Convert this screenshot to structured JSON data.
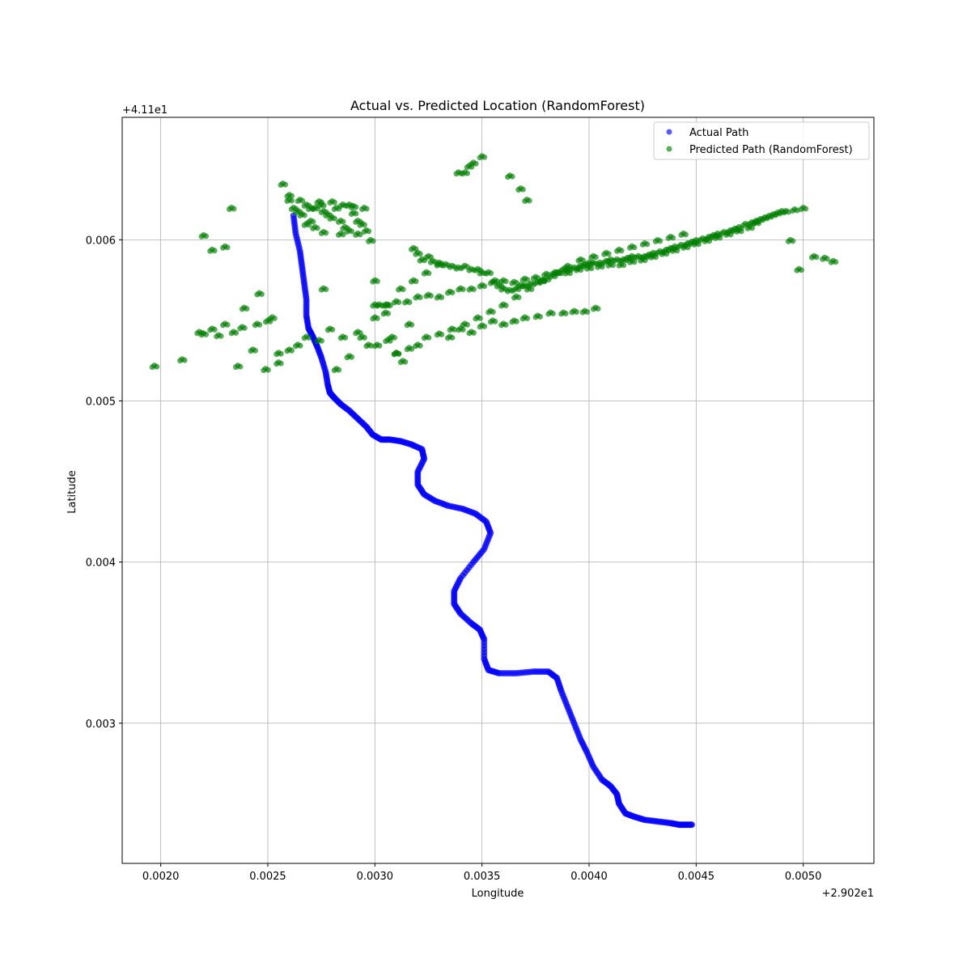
{
  "chart_data": {
    "type": "scatter",
    "title": "Actual vs. Predicted Location (RandomForest)",
    "xlabel": "Longitude",
    "ylabel": "Latitude",
    "x_offset_label": "+2.902e1",
    "y_offset_label": "+4.11e1",
    "xlim": [
      0.00182,
      0.00533
    ],
    "ylim": [
      0.00213,
      0.00676
    ],
    "xticks": [
      {
        "value": 0.002,
        "label": "0.0020"
      },
      {
        "value": 0.0025,
        "label": "0.0025"
      },
      {
        "value": 0.003,
        "label": "0.0030"
      },
      {
        "value": 0.0035,
        "label": "0.0035"
      },
      {
        "value": 0.004,
        "label": "0.0040"
      },
      {
        "value": 0.0045,
        "label": "0.0045"
      },
      {
        "value": 0.005,
        "label": "0.0050"
      }
    ],
    "yticks": [
      {
        "value": 0.003,
        "label": "0.003"
      },
      {
        "value": 0.004,
        "label": "0.004"
      },
      {
        "value": 0.005,
        "label": "0.005"
      },
      {
        "value": 0.006,
        "label": "0.006"
      }
    ],
    "grid": true,
    "legend_position": "top-right",
    "series": [
      {
        "name": "Actual Path",
        "color": "#0000ff",
        "x": [
          0.00262,
          0.00263,
          0.00265,
          0.00266,
          0.00267,
          0.00268,
          0.00268,
          0.00269,
          0.00271,
          0.00273,
          0.00275,
          0.00277,
          0.00278,
          0.00279,
          0.00281,
          0.00284,
          0.00288,
          0.00292,
          0.00296,
          0.00299,
          0.00303,
          0.00307,
          0.00312,
          0.00317,
          0.00322,
          0.00323,
          0.0032,
          0.0032,
          0.00323,
          0.00328,
          0.00334,
          0.00341,
          0.00347,
          0.00352,
          0.00354,
          0.00351,
          0.00346,
          0.0034,
          0.00337,
          0.00337,
          0.0034,
          0.00345,
          0.00349,
          0.00351,
          0.00351,
          0.00353,
          0.00358,
          0.00366,
          0.00374,
          0.00381,
          0.00385,
          0.00387,
          0.0039,
          0.00393,
          0.00396,
          0.00399,
          0.00402,
          0.00406,
          0.0041,
          0.00413,
          0.00414,
          0.00417,
          0.00421,
          0.00426,
          0.00432,
          0.00438,
          0.00442,
          0.00445,
          0.00448
        ],
        "y": [
          0.00615,
          0.00604,
          0.00593,
          0.00583,
          0.00573,
          0.00563,
          0.00553,
          0.00545,
          0.0054,
          0.00534,
          0.00527,
          0.00518,
          0.0051,
          0.00505,
          0.00502,
          0.00498,
          0.00494,
          0.00489,
          0.00484,
          0.00479,
          0.00476,
          0.00476,
          0.00475,
          0.00473,
          0.0047,
          0.00464,
          0.00456,
          0.00448,
          0.00442,
          0.00438,
          0.00435,
          0.00433,
          0.0043,
          0.00425,
          0.00418,
          0.00408,
          0.004,
          0.0039,
          0.00382,
          0.00374,
          0.00368,
          0.00362,
          0.00358,
          0.00352,
          0.0034,
          0.00333,
          0.00331,
          0.00331,
          0.00332,
          0.00332,
          0.00328,
          0.0032,
          0.0031,
          0.003,
          0.0029,
          0.00282,
          0.00273,
          0.00265,
          0.00261,
          0.00256,
          0.0025,
          0.00244,
          0.00242,
          0.0024,
          0.00239,
          0.00238,
          0.00237,
          0.00237,
          0.00237
        ]
      },
      {
        "name": "Predicted Path (RandomForest)",
        "color": "#008000",
        "x": [
          0.00197,
          0.0021,
          0.00218,
          0.0022,
          0.00224,
          0.0023,
          0.00233,
          0.00236,
          0.00239,
          0.00243,
          0.00246,
          0.00249,
          0.00252,
          0.00255,
          0.00257,
          0.0026,
          0.00262,
          0.00264,
          0.00266,
          0.00268,
          0.0027,
          0.00272,
          0.00274,
          0.00276,
          0.00278,
          0.0028,
          0.00282,
          0.00284,
          0.00286,
          0.00288,
          0.0029,
          0.00292,
          0.00294,
          0.00296,
          0.00298,
          0.003,
          0.00302,
          0.00305,
          0.00308,
          0.0031,
          0.00313,
          0.00316,
          0.00318,
          0.0032,
          0.00322,
          0.00325,
          0.00327,
          0.0033,
          0.00333,
          0.00336,
          0.00339,
          0.00342,
          0.00345,
          0.00348,
          0.0035,
          0.00353,
          0.00356,
          0.00358,
          0.0036,
          0.00363,
          0.00366,
          0.00368,
          0.0037,
          0.00373,
          0.00376,
          0.00378,
          0.0038,
          0.00383,
          0.00386,
          0.00388,
          0.0039,
          0.00393,
          0.00396,
          0.00398,
          0.004,
          0.00402,
          0.00405,
          0.00408,
          0.0041,
          0.00413,
          0.00416,
          0.00418,
          0.0042,
          0.00423,
          0.00426,
          0.00428,
          0.0043,
          0.00433,
          0.00436,
          0.00438,
          0.0044,
          0.00443,
          0.00446,
          0.00448,
          0.0045,
          0.00453,
          0.00456,
          0.00458,
          0.0046,
          0.00463,
          0.00466,
          0.00468,
          0.0047,
          0.00473,
          0.00476,
          0.00478,
          0.0048,
          0.00484,
          0.00488,
          0.00492,
          0.00496,
          0.005,
          0.00505,
          0.0051,
          0.00514,
          0.00342,
          0.00346,
          0.0035,
          0.00344,
          0.00339,
          0.00363,
          0.00368,
          0.00371,
          0.0026,
          0.00265,
          0.0027,
          0.00275,
          0.0028,
          0.00285,
          0.0029,
          0.00295,
          0.00268,
          0.00272,
          0.00276,
          0.00284,
          0.00288,
          0.00292,
          0.0022,
          0.00224,
          0.00227,
          0.0023,
          0.00234,
          0.00238,
          0.00245,
          0.0025,
          0.00255,
          0.0026,
          0.00264,
          0.00268,
          0.00274,
          0.00279,
          0.00285,
          0.00292,
          0.00297,
          0.00301,
          0.00306,
          0.0031,
          0.00316,
          0.0032,
          0.00324,
          0.0033,
          0.00335,
          0.0034,
          0.00345,
          0.0035,
          0.00355,
          0.0036,
          0.00365,
          0.0037,
          0.00376,
          0.00382,
          0.00388,
          0.00393,
          0.00398,
          0.00403,
          0.003,
          0.00305,
          0.0031,
          0.00315,
          0.0032,
          0.00325,
          0.0033,
          0.00335,
          0.0034,
          0.00345,
          0.0035,
          0.00355,
          0.0036,
          0.00365,
          0.0037,
          0.00375,
          0.0038,
          0.00385,
          0.0039,
          0.00395,
          0.004,
          0.00405,
          0.0041,
          0.00415,
          0.0042,
          0.00425,
          0.0043,
          0.00435,
          0.0044,
          0.00445,
          0.0045,
          0.00455,
          0.0046,
          0.00465,
          0.0047,
          0.00475,
          0.00478,
          0.00482,
          0.00486,
          0.0049,
          0.00494,
          0.00498,
          0.00276,
          0.00282,
          0.00288,
          0.00294,
          0.003,
          0.00306,
          0.00312,
          0.00318,
          0.00324,
          0.0033,
          0.00336,
          0.00342,
          0.00348,
          0.00354,
          0.0036,
          0.00366,
          0.00372,
          0.00378,
          0.00384,
          0.0039,
          0.00396,
          0.00402,
          0.00408,
          0.00414,
          0.0042,
          0.00426,
          0.00432,
          0.00438,
          0.00444
        ],
        "y": [
          0.00522,
          0.00526,
          0.00543,
          0.00603,
          0.00594,
          0.00596,
          0.0062,
          0.00522,
          0.00558,
          0.00532,
          0.00567,
          0.0052,
          0.00552,
          0.00524,
          0.00635,
          0.00625,
          0.0062,
          0.00618,
          0.00616,
          0.00622,
          0.00612,
          0.0062,
          0.00624,
          0.00618,
          0.00616,
          0.00614,
          0.0062,
          0.00612,
          0.00608,
          0.00622,
          0.00617,
          0.00612,
          0.0061,
          0.00606,
          0.006,
          0.00575,
          0.0056,
          0.00555,
          0.0054,
          0.0053,
          0.00525,
          0.00548,
          0.00595,
          0.00592,
          0.00588,
          0.0059,
          0.00587,
          0.00586,
          0.00585,
          0.00584,
          0.00583,
          0.00584,
          0.00582,
          0.00582,
          0.0058,
          0.0058,
          0.00575,
          0.00572,
          0.0057,
          0.00569,
          0.0057,
          0.00572,
          0.00572,
          0.00573,
          0.00574,
          0.00575,
          0.00576,
          0.00578,
          0.0058,
          0.00582,
          0.00582,
          0.00583,
          0.00584,
          0.00585,
          0.00586,
          0.00586,
          0.00586,
          0.00587,
          0.00588,
          0.00588,
          0.00588,
          0.00589,
          0.0059,
          0.0059,
          0.0059,
          0.00591,
          0.00592,
          0.00593,
          0.00594,
          0.00595,
          0.00596,
          0.00597,
          0.00598,
          0.00599,
          0.006,
          0.00601,
          0.00602,
          0.00603,
          0.00604,
          0.00605,
          0.00606,
          0.00607,
          0.00608,
          0.0061,
          0.00611,
          0.00612,
          0.00613,
          0.00615,
          0.00617,
          0.00618,
          0.00619,
          0.0062,
          0.0059,
          0.00589,
          0.00587,
          0.00642,
          0.00648,
          0.00652,
          0.00646,
          0.00642,
          0.0064,
          0.00632,
          0.00625,
          0.00628,
          0.00625,
          0.0062,
          0.00622,
          0.00624,
          0.00622,
          0.00621,
          0.0062,
          0.0061,
          0.00608,
          0.00605,
          0.00604,
          0.00606,
          0.00604,
          0.00542,
          0.00545,
          0.00541,
          0.00548,
          0.00543,
          0.00546,
          0.00548,
          0.0055,
          0.0053,
          0.00532,
          0.00535,
          0.0054,
          0.00538,
          0.00545,
          0.0054,
          0.00543,
          0.00535,
          0.00535,
          0.00538,
          0.0053,
          0.00533,
          0.00535,
          0.0054,
          0.00542,
          0.0054,
          0.00545,
          0.00543,
          0.00547,
          0.0055,
          0.00548,
          0.0055,
          0.00552,
          0.00553,
          0.00555,
          0.00555,
          0.00556,
          0.00556,
          0.00558,
          0.0056,
          0.0056,
          0.00562,
          0.00562,
          0.00565,
          0.00566,
          0.00565,
          0.00568,
          0.0057,
          0.0057,
          0.00572,
          0.00574,
          0.00575,
          0.00574,
          0.00576,
          0.00577,
          0.00579,
          0.0058,
          0.0058,
          0.00582,
          0.00583,
          0.00584,
          0.00585,
          0.00585,
          0.00587,
          0.00588,
          0.0059,
          0.00592,
          0.00594,
          0.00596,
          0.00598,
          0.006,
          0.00602,
          0.00604,
          0.00606,
          0.00608,
          0.00611,
          0.00614,
          0.00616,
          0.00618,
          0.006,
          0.00582,
          0.0057,
          0.0052,
          0.00528,
          0.0054,
          0.00552,
          0.0056,
          0.0057,
          0.00575,
          0.0058,
          0.00585,
          0.00545,
          0.00548,
          0.00552,
          0.00556,
          0.0056,
          0.00565,
          0.0057,
          0.00575,
          0.0058,
          0.00584,
          0.00588,
          0.0059,
          0.00592,
          0.00594,
          0.00596,
          0.00598,
          0.006,
          0.00602,
          0.00604
        ]
      }
    ]
  }
}
